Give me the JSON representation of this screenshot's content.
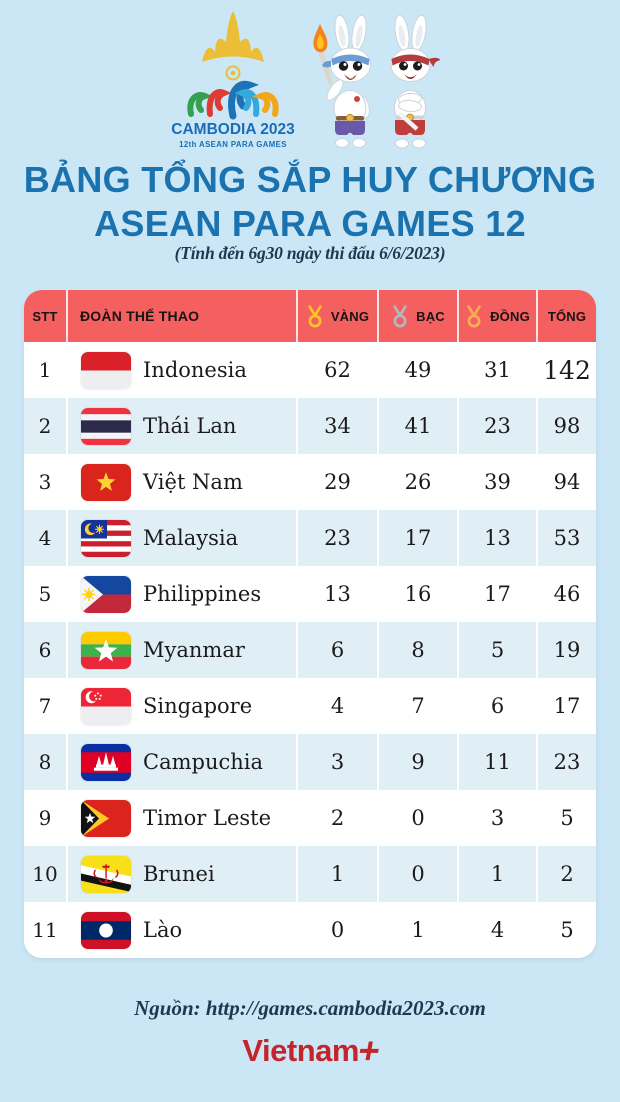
{
  "logo": {
    "title": "CAMBODIA 2023",
    "subtitle": "12th ASEAN PARA GAMES"
  },
  "title": {
    "line1": "BẢNG TỔNG SẮP HUY CHƯƠNG",
    "line2": "ASEAN PARA GAMES 12",
    "note": "(Tính đến 6g30 ngày thi đấu 6/6/2023)"
  },
  "chart_data": {
    "type": "table",
    "title": "BẢNG TỔNG SẮP HUY CHƯƠNG ASEAN PARA GAMES 12",
    "columns": [
      "STT",
      "ĐOÀN THỂ THAO",
      "VÀNG",
      "BẠC",
      "ĐỒNG",
      "TỔNG"
    ],
    "rows": [
      {
        "rank": 1,
        "team": "Indonesia",
        "flag": "indonesia",
        "gold": 62,
        "silver": 49,
        "bronze": 31,
        "total": 142
      },
      {
        "rank": 2,
        "team": "Thái Lan",
        "flag": "thailand",
        "gold": 34,
        "silver": 41,
        "bronze": 23,
        "total": 98
      },
      {
        "rank": 3,
        "team": "Việt Nam",
        "flag": "vietnam",
        "gold": 29,
        "silver": 26,
        "bronze": 39,
        "total": 94
      },
      {
        "rank": 4,
        "team": "Malaysia",
        "flag": "malaysia",
        "gold": 23,
        "silver": 17,
        "bronze": 13,
        "total": 53
      },
      {
        "rank": 5,
        "team": "Philippines",
        "flag": "philippines",
        "gold": 13,
        "silver": 16,
        "bronze": 17,
        "total": 46
      },
      {
        "rank": 6,
        "team": "Myanmar",
        "flag": "myanmar",
        "gold": 6,
        "silver": 8,
        "bronze": 5,
        "total": 19
      },
      {
        "rank": 7,
        "team": "Singapore",
        "flag": "singapore",
        "gold": 4,
        "silver": 7,
        "bronze": 6,
        "total": 17
      },
      {
        "rank": 8,
        "team": "Campuchia",
        "flag": "cambodia",
        "gold": 3,
        "silver": 9,
        "bronze": 11,
        "total": 23
      },
      {
        "rank": 9,
        "team": "Timor Leste",
        "flag": "timor-leste",
        "gold": 2,
        "silver": 0,
        "bronze": 3,
        "total": 5
      },
      {
        "rank": 10,
        "team": "Brunei",
        "flag": "brunei",
        "gold": 1,
        "silver": 0,
        "bronze": 1,
        "total": 2
      },
      {
        "rank": 11,
        "team": "Lào",
        "flag": "laos",
        "gold": 0,
        "silver": 1,
        "bronze": 4,
        "total": 5
      }
    ]
  },
  "colors": {
    "background": "#cbe7f5",
    "header_red": "#f45f5f",
    "row_alt_blue": "#e0eef5",
    "title_blue": "#1a72ae",
    "note_navy": "#1d3850",
    "brand_red": "#c4242b",
    "medal_gold": "#ffc425",
    "medal_silver": "#b2b8bf",
    "medal_bronze": "#fbab55"
  },
  "footer": {
    "source": "Nguồn: http://games.cambodia2023.com",
    "brand": "Vietnam",
    "brand_plus": "+"
  }
}
